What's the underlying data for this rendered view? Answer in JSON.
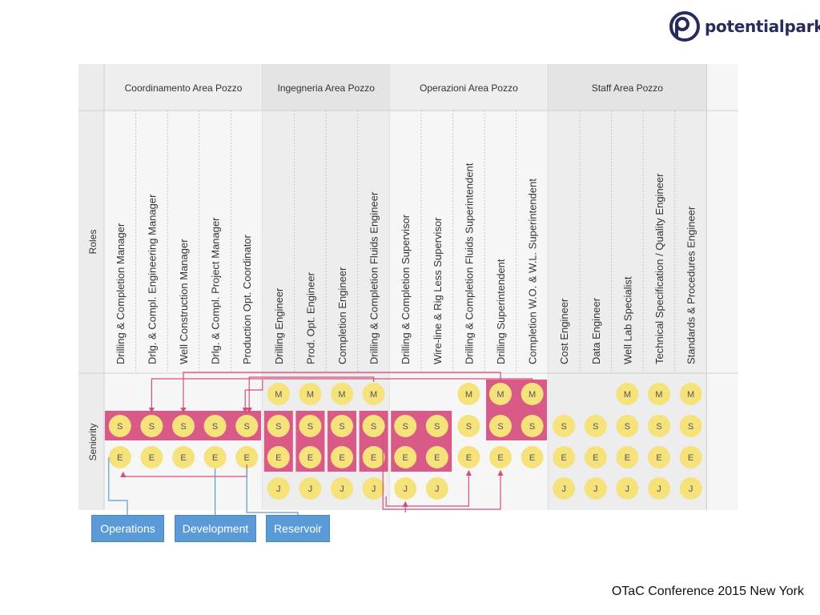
{
  "brand": {
    "name": "potentialpark"
  },
  "footer": {
    "text": "OTaC Conference 2015 New York"
  },
  "header": {
    "roles_label": "Roles",
    "seniority_label": "Seniority"
  },
  "groups": [
    {
      "label": "Coordinamento Area Pozzo"
    },
    {
      "label": "Ingegneria Area Pozzo"
    },
    {
      "label": "Operazioni Area Pozzo"
    },
    {
      "label": "Staff Area Pozzo"
    }
  ],
  "roles": [
    {
      "label": "Drilling & Completion Manager",
      "levels": [
        "S",
        "E"
      ]
    },
    {
      "label": "Drlg. & Compl. Engineering Manager",
      "levels": [
        "S",
        "E"
      ]
    },
    {
      "label": "Well Construction Manager",
      "levels": [
        "S",
        "E"
      ]
    },
    {
      "label": "Drlg. & Compl. Project Manager",
      "levels": [
        "S",
        "E"
      ]
    },
    {
      "label": "Production Opt. Coordinator",
      "levels": [
        "S",
        "E"
      ]
    },
    {
      "label": "Drilling Engineer",
      "levels": [
        "M",
        "S",
        "E",
        "J"
      ]
    },
    {
      "label": "Prod. Opt. Engineer",
      "levels": [
        "M",
        "S",
        "E",
        "J"
      ]
    },
    {
      "label": "Completion Engineer",
      "levels": [
        "M",
        "S",
        "E",
        "J"
      ]
    },
    {
      "label": "Drilling & Completion Fluids Engineer",
      "levels": [
        "M",
        "S",
        "E",
        "J"
      ]
    },
    {
      "label": "Drilling & Completion Supervisor",
      "levels": [
        "S",
        "E",
        "J"
      ]
    },
    {
      "label": "Wire-line & Rig Less Supervisor",
      "levels": [
        "S",
        "E",
        "J"
      ]
    },
    {
      "label": "Drilling & Completion Fluids Superintendent",
      "levels": [
        "M",
        "S",
        "E"
      ]
    },
    {
      "label": "Drilling Superintendent",
      "levels": [
        "M",
        "S",
        "E"
      ]
    },
    {
      "label": "Completion W.O. & W.L. Superintendent",
      "levels": [
        "M",
        "S",
        "E"
      ]
    },
    {
      "label": "Cost Engineer",
      "levels": [
        "S",
        "E",
        "J"
      ]
    },
    {
      "label": "Data Engineer",
      "levels": [
        "S",
        "E",
        "J"
      ]
    },
    {
      "label": "Well Lab Specialist",
      "levels": [
        "M",
        "S",
        "E",
        "J"
      ]
    },
    {
      "label": "Technical Specification / Quality Engineer",
      "levels": [
        "M",
        "S",
        "E",
        "J"
      ]
    },
    {
      "label": "Standards & Procedures Engineer",
      "levels": [
        "M",
        "S",
        "E",
        "J"
      ]
    }
  ],
  "legend": [
    {
      "label": "Operations"
    },
    {
      "label": "Development"
    },
    {
      "label": "Reservoir"
    }
  ],
  "colors": {
    "circle": "#f5e27a",
    "highlight": "#d95a86",
    "arrow": "#d24f7e",
    "legend_line": "#5a9ad6",
    "legend_box": "#5a9ad6",
    "header_bg": "#e9e9e9"
  }
}
